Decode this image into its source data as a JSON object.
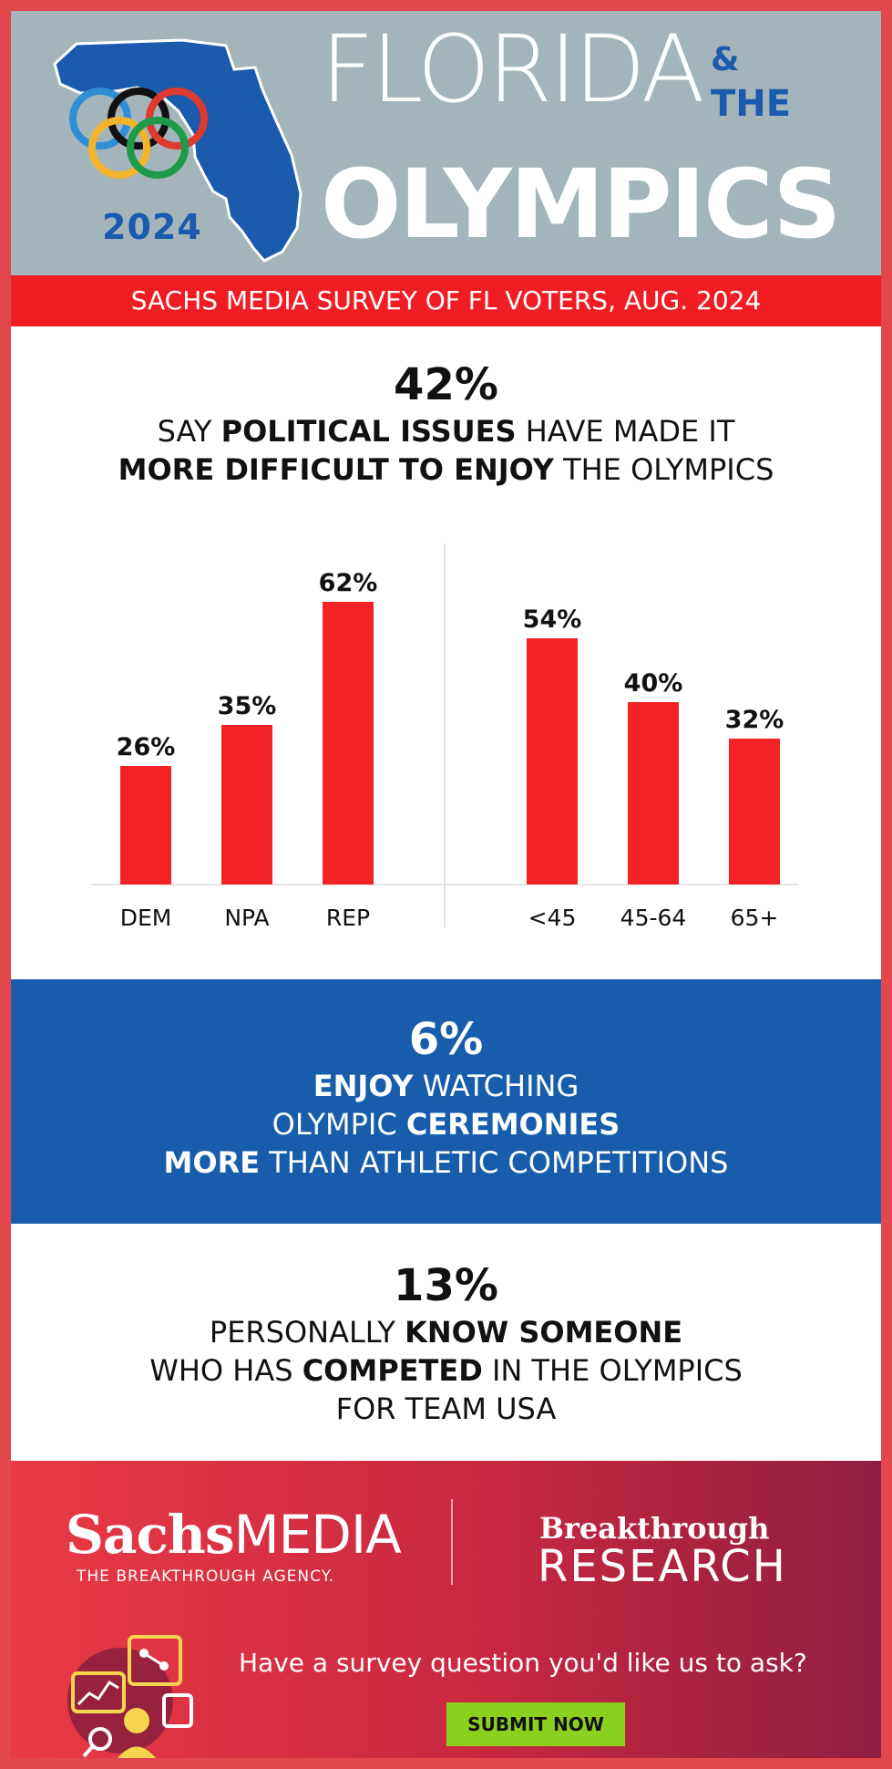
{
  "header": {
    "map_year": "2024",
    "title_florida": "FLORIDA",
    "title_amp": "&",
    "title_the": "THE",
    "title_olympics": "OLYMPICS"
  },
  "banner": "SACHS MEDIA SURVEY OF FL VOTERS, AUG. 2024",
  "stat1": {
    "number": "42%",
    "line1_a": "SAY ",
    "line1_b": "POLITICAL ISSUES",
    "line1_c": " HAVE MADE IT",
    "line2_a": "MORE DIFFICULT TO ENJOY",
    "line2_b": " THE OLYMPICS"
  },
  "chart_data": [
    {
      "type": "bar",
      "categories": [
        "DEM",
        "NPA",
        "REP"
      ],
      "values": [
        26,
        35,
        62
      ],
      "data_labels": [
        "26%",
        "35%",
        "62%"
      ],
      "ylim": [
        0,
        62
      ],
      "color": "#f42224"
    },
    {
      "type": "bar",
      "categories": [
        "<45",
        "45-64",
        "65+"
      ],
      "values": [
        54,
        40,
        32
      ],
      "data_labels": [
        "54%",
        "40%",
        "32%"
      ],
      "ylim": [
        0,
        62
      ],
      "color": "#f42224"
    }
  ],
  "stat2": {
    "number": "6%",
    "line1_a": "ENJOY",
    "line1_b": " WATCHING",
    "line2_a": "OLYMPIC ",
    "line2_b": "CEREMONIES",
    "line3_a": "MORE",
    "line3_b": " THAN ATHLETIC COMPETITIONS"
  },
  "stat3": {
    "number": "13%",
    "line1_a": "PERSONALLY ",
    "line1_b": "KNOW SOMEONE",
    "line2_a": "WHO HAS ",
    "line2_b": "COMPETED",
    "line2_c": " IN THE OLYMPICS",
    "line3": "FOR TEAM USA"
  },
  "footer": {
    "sachs_part1": "Sachs",
    "sachs_part2": "MEDIA",
    "sachs_tagline": "THE BREAKTHROUGH AGENCY.",
    "br_top": "Breakthrough",
    "br_bottom": "RESEARCH",
    "question": "Have a survey question you'd like us to ask?",
    "submit_label": "SUBMIT NOW"
  },
  "colors": {
    "frame": "#e1474b",
    "header_bg": "#a3b5ba",
    "accent_blue": "#1a5bad",
    "banner_red": "#f01e24",
    "bar_red": "#f42224",
    "stat2_bg": "#175dab",
    "submit_green": "#8ad11f"
  }
}
